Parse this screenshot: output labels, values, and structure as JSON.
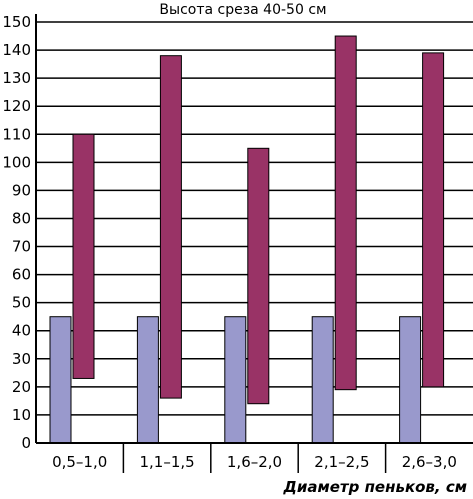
{
  "chart_data": {
    "type": "bar",
    "title": "Высота среза 40-50 см",
    "xlabel": "Диаметр пеньков, см",
    "ylabel": "",
    "ylim": [
      0,
      150
    ],
    "yticks": [
      "0",
      "10",
      "20",
      "30",
      "40",
      "50",
      "60",
      "70",
      "80",
      "90",
      "100",
      "110",
      "120",
      "130",
      "140",
      "150"
    ],
    "categories": [
      "0,5–1,0",
      "1,1–1,5",
      "1,6–2,0",
      "2,1–2,5",
      "2,6–3,0"
    ],
    "grid": true,
    "series": [
      {
        "color": "#9999cc",
        "values": [
          [
            0,
            45
          ],
          [
            0,
            45
          ],
          [
            0,
            45
          ],
          [
            0,
            45
          ],
          [
            0,
            45
          ]
        ]
      },
      {
        "color": "#993366",
        "values": [
          [
            23,
            110
          ],
          [
            16,
            138
          ],
          [
            14,
            105
          ],
          [
            19,
            145
          ],
          [
            20,
            139
          ]
        ]
      }
    ]
  }
}
